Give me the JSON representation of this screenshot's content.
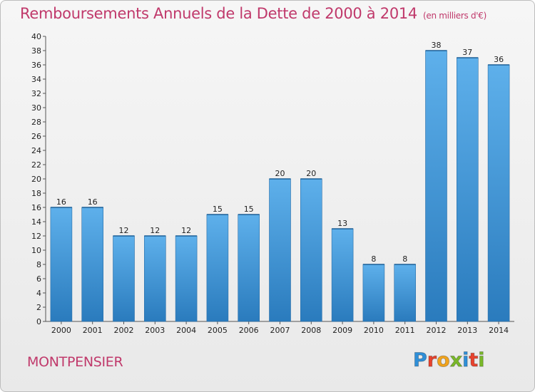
{
  "chart_data": {
    "type": "bar",
    "title": "Remboursements Annuels de la Dette de 2000 à 2014",
    "unit_note": "(en milliers d'€)",
    "categories": [
      "2000",
      "2001",
      "2002",
      "2003",
      "2004",
      "2005",
      "2006",
      "2007",
      "2008",
      "2009",
      "2010",
      "2011",
      "2012",
      "2013",
      "2014"
    ],
    "values": [
      16,
      16,
      12,
      12,
      12,
      15,
      15,
      20,
      20,
      13,
      8,
      8,
      38,
      37,
      36
    ],
    "ylim": [
      0,
      40
    ],
    "ytick_step": 2,
    "grid": false,
    "bar_color": "#3d92d6"
  },
  "footer": {
    "commune": "MONTPENSIER",
    "logo_letters": [
      {
        "ch": "P",
        "color": "#2f8fd8"
      },
      {
        "ch": "r",
        "color": "#e8432e"
      },
      {
        "ch": "o",
        "color": "#f2a41c"
      },
      {
        "ch": "x",
        "color": "#7ab929"
      },
      {
        "ch": "i",
        "color": "#2f8fd8"
      },
      {
        "ch": "t",
        "color": "#e8432e"
      },
      {
        "ch": "i",
        "color": "#7ab929"
      }
    ]
  },
  "colors": {
    "title": "#c0396b",
    "background": "#efefef"
  }
}
